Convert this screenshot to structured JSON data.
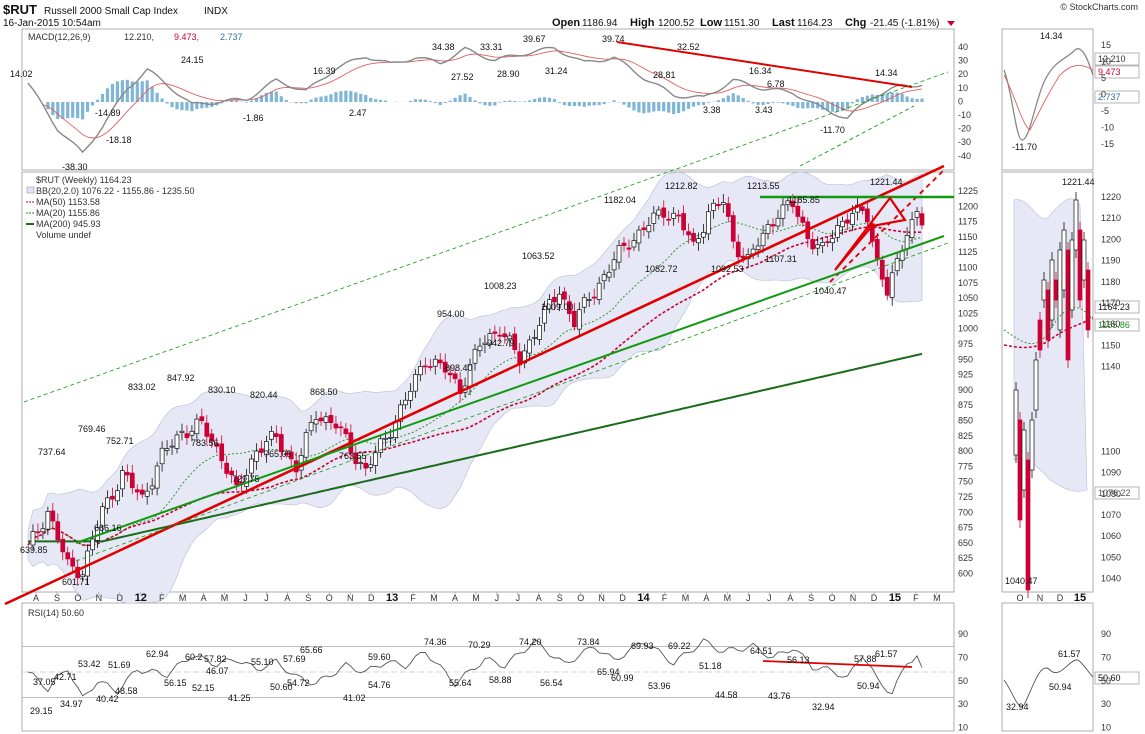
{
  "header": {
    "symbol": "$RUT",
    "name": "Russell 2000 Small Cap Index",
    "exchange": "INDX",
    "date": "16-Jan-2015 10:54am",
    "open_label": "Open",
    "open": "1186.94",
    "high_label": "High",
    "high": "1200.52",
    "low_label": "Low",
    "low": "1151.30",
    "last_label": "Last",
    "last": "1164.23",
    "chg_label": "Chg",
    "chg": "-21.45 (-1.81%)",
    "copyright": "© StockCharts.com"
  },
  "colors": {
    "up": "#111111",
    "down": "#cc0033",
    "bb_fill": "#e6e8f5",
    "ma50": "#cc0033",
    "ma20": "#228b22",
    "ma200": "#1a6b1a",
    "trend_red": "#e00000",
    "trend_green": "#119911",
    "hist": "#7fb5d5"
  },
  "macd": {
    "legend": "MACD(12,26,9) 12.210, 9.473, 2.737",
    "legend_parts": [
      "MACD(12,26,9)",
      "12.210,",
      "9.473,",
      "2.737"
    ],
    "ylim": [
      -45,
      48
    ],
    "ticks": [
      "40",
      "30",
      "20",
      "10",
      "0",
      "-10",
      "-20",
      "-30",
      "-40"
    ],
    "labels": [
      "14.02",
      "-38.30",
      "-14.89",
      "-18.18",
      "24.15",
      "-1.86",
      "2.47",
      "16.39",
      "34.38",
      "27.52",
      "33.31",
      "28.90",
      "39.67",
      "31.24",
      "39.74",
      "28.81",
      "32.52",
      "3.38",
      "16.34",
      "3.43",
      "6.78",
      "-11.70",
      "14.34"
    ],
    "side_ticks": [
      "15",
      "10",
      "5",
      "0",
      "-5",
      "-10",
      "-15"
    ],
    "side_labels": [
      "14.34",
      "12.210",
      "9.473",
      "2.737",
      "-11.70"
    ]
  },
  "price": {
    "legend": [
      "$RUT (Weekly) 1164.23",
      "BB(20,2.0) 1076.22 - 1155.86 - 1235.50",
      "MA(50) 1153.58",
      "MA(20) 1155.86",
      "MA(200) 945.93",
      "Volume undef"
    ],
    "ticks": [
      "1225",
      "1200",
      "1175",
      "1150",
      "1125",
      "1100",
      "1075",
      "1050",
      "1025",
      "1000",
      "975",
      "950",
      "925",
      "900",
      "875",
      "850",
      "825",
      "800",
      "775",
      "750",
      "725",
      "700",
      "675",
      "650",
      "625",
      "600"
    ],
    "labels": [
      "639.85",
      "601.71",
      "737.64",
      "769.46",
      "752.71",
      "666.16",
      "833.02",
      "847.92",
      "830.10",
      "783.56",
      "729.75",
      "820.44",
      "765.05",
      "868.50",
      "763.55",
      "954.00",
      "898.40",
      "1008.23",
      "942.79",
      "1063.52",
      "1009.00",
      "1182.04",
      "1212.82",
      "1082.72",
      "1213.55",
      "1092.53",
      "1185.85",
      "1107.31",
      "1221.44",
      "1040.47"
    ],
    "last_tag": "1164.23",
    "side_ticks": [
      "1220",
      "1210",
      "1200",
      "1190",
      "1180",
      "1170",
      "1160",
      "1150",
      "1140",
      "1130",
      "1120",
      "1110",
      "1100",
      "1090",
      "1080",
      "1070",
      "1060",
      "1050",
      "1040"
    ],
    "side_labels": [
      "1221.44",
      "1040.47",
      "1164.23",
      "1155.86",
      "1076.22"
    ]
  },
  "chart_data": {
    "type": "candlestick",
    "title": "$RUT Russell 2000 Small Cap Index INDX",
    "x": [
      "A",
      "S",
      "O",
      "N",
      "D",
      "12",
      "F",
      "M",
      "A",
      "M",
      "J",
      "J",
      "A",
      "S",
      "O",
      "N",
      "D",
      "13",
      "F",
      "M",
      "A",
      "M",
      "J",
      "J",
      "A",
      "S",
      "O",
      "N",
      "D",
      "14",
      "F",
      "M",
      "A",
      "M",
      "J",
      "J",
      "A",
      "S",
      "O",
      "N",
      "D",
      "15",
      "F",
      "M"
    ],
    "series": [
      {
        "name": "$RUT (Weekly)",
        "last": 1164.23
      },
      {
        "name": "BB(20,2.0)",
        "lower": 1076.22,
        "mid": 1155.86,
        "upper": 1235.5
      },
      {
        "name": "MA(50)",
        "value": 1153.58
      },
      {
        "name": "MA(20)",
        "value": 1155.86
      },
      {
        "name": "MA(200)",
        "value": 945.93
      }
    ],
    "ylim": [
      575,
      1240
    ]
  },
  "rsi": {
    "legend": "RSI(14) 50.60",
    "ticks": [
      "90",
      "70",
      "50",
      "30",
      "10"
    ],
    "labels": [
      "37.05",
      "53.42",
      "42.71",
      "51.69",
      "29.15",
      "34.97",
      "40.42",
      "48.58",
      "62.94",
      "56.15",
      "60.2",
      "52.15",
      "57.82",
      "46.07",
      "41.25",
      "55.10",
      "50.60",
      "57.69",
      "54.72",
      "65.66",
      "41.02",
      "59.60",
      "54.76",
      "74.36",
      "55.64",
      "70.29",
      "58.88",
      "74.20",
      "56.54",
      "73.84",
      "65.94",
      "69.93",
      "60.99",
      "69.22",
      "53.96",
      "51.18",
      "44.58",
      "64.51",
      "56.13",
      "43.76",
      "32.94",
      "57.88",
      "61.57",
      "50.94"
    ],
    "side_labels": [
      "61.57",
      "50.94",
      "32.94",
      "50.60"
    ],
    "side_ticks": [
      "90",
      "70",
      "50",
      "30",
      "10"
    ]
  }
}
